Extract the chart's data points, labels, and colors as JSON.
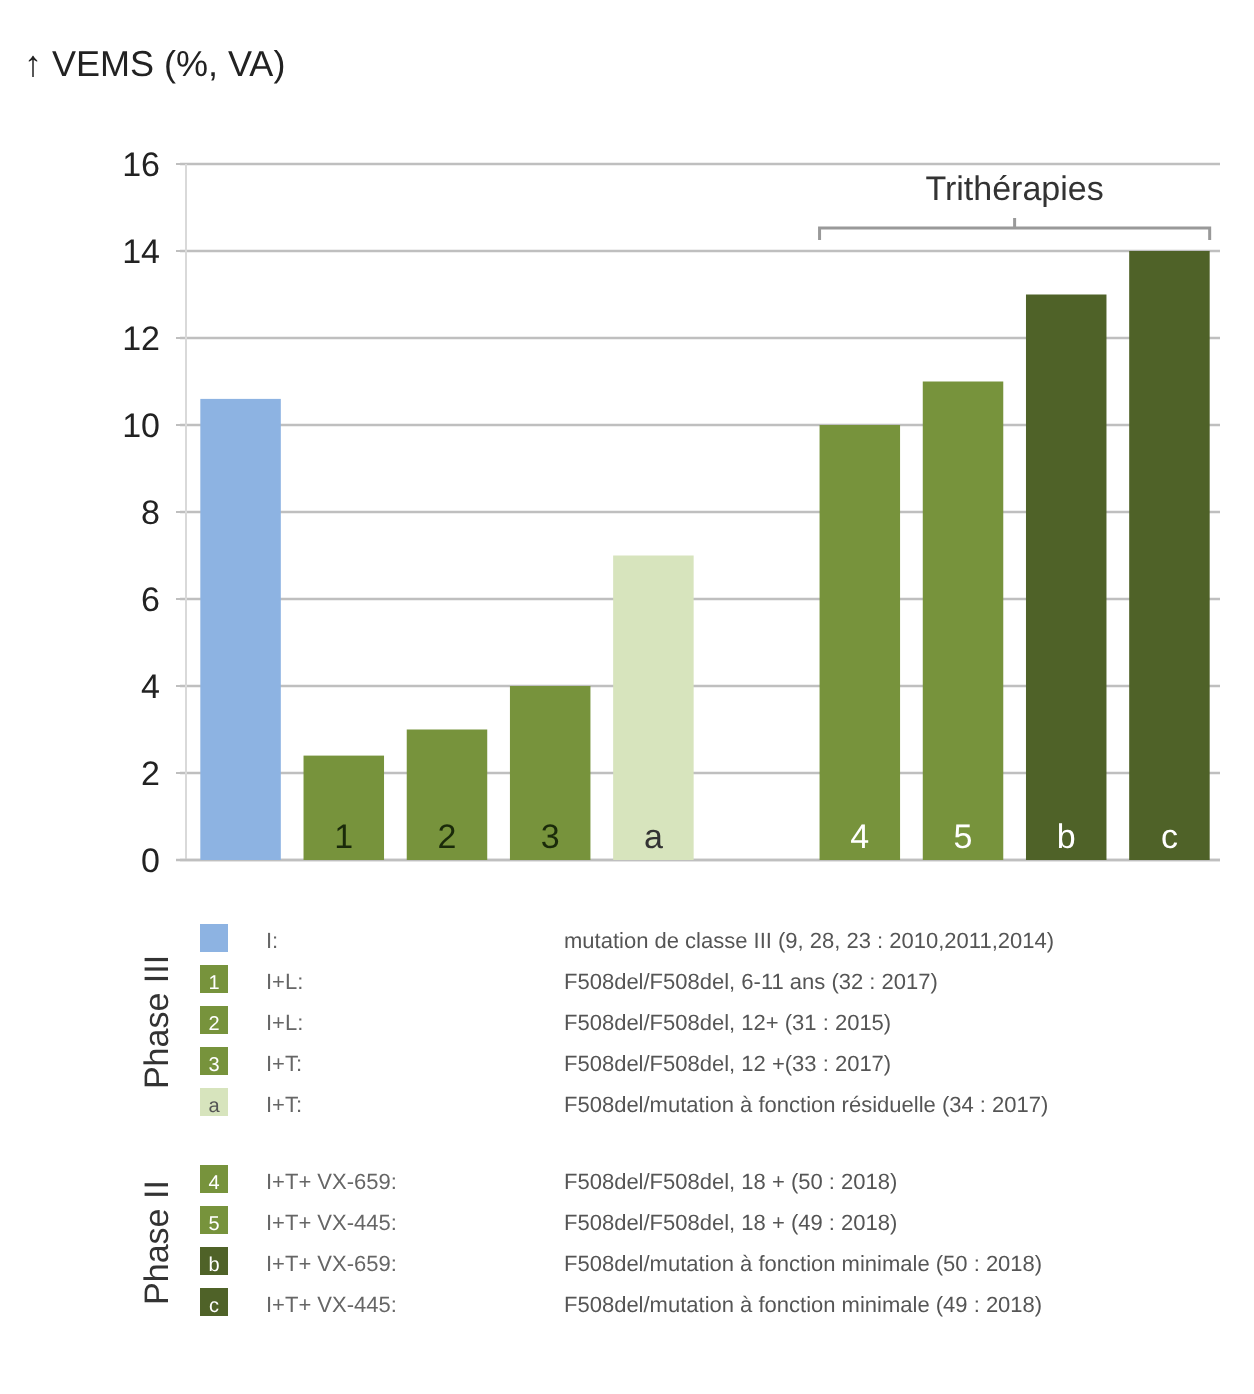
{
  "chart_data": {
    "type": "bar",
    "title": "↑ VEMS (%, VA)",
    "categories": [
      null,
      "1",
      "2",
      "3",
      "a",
      null,
      "4",
      "5",
      "b",
      "c"
    ],
    "values": [
      10.6,
      2.4,
      3,
      4,
      7,
      null,
      10,
      11,
      13,
      14
    ],
    "colors": [
      "#8db3e2",
      "#77933c",
      "#77933c",
      "#77933c",
      "#d7e4bd",
      null,
      "#77933c",
      "#77933c",
      "#4f6228",
      "#4f6228"
    ],
    "ylim": [
      0,
      16
    ],
    "yticks": [
      0,
      2,
      4,
      6,
      8,
      10,
      12,
      14,
      16
    ],
    "grid": "y",
    "annotations": [
      "Trithérapies",
      "Phase III",
      "Phase II",
      "I:",
      "mutation de classe III (9, 28, 23 : 2010,2011,2014)",
      "I+L:",
      "F508del/F508del, 6-11 ans (32 : 2017)",
      "I+L:",
      "F508del/F508del, 12+ (31 : 2015)",
      "I+T:",
      "F508del/F508del, 12 +(33 : 2017)",
      "I+T:",
      "F508del/mutation à fonction résiduelle (34 : 2017)",
      "I+T+ VX-659:",
      "F508del/F508del, 18 + (50 : 2018)",
      "I+T+ VX-445:",
      "F508del/F508del, 18 + (49 : 2018)",
      "I+T+ VX-659:",
      "F508del/mutation à fonction minimale (50 : 2018)",
      "I+T+ VX-445:",
      "F508del/mutation à fonction minimale (49 : 2018)"
    ]
  }
}
